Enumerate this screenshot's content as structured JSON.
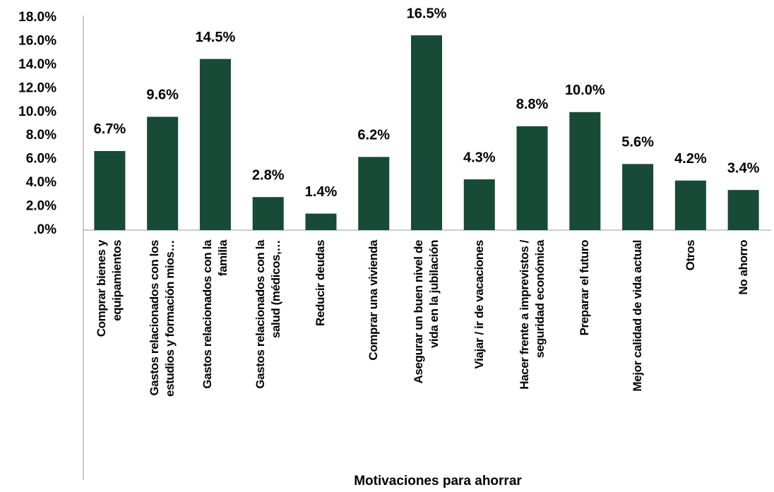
{
  "chart_data": {
    "type": "bar",
    "x_label": "Motivaciones para ahorrar",
    "categories": [
      "Comprar bienes y\nequipamientos",
      "Gastos relacionados con los\nestudios y formación mios…",
      "Gastos relacionados con la\nfamilia",
      "Gastos relacionados con la\nsalud (médicos,…",
      "Reducir deudas",
      "Comprar una vivienda",
      "Asegurar un buen nivel de\nvida en la jubilación",
      "Viajar / ir de vacaciones",
      "Hacer frente a imprevistos /\nseguridad económica",
      "Preparar el futuro",
      "Mejor calidad de vida actual",
      "Otros",
      "No ahorro"
    ],
    "values": [
      6.7,
      9.6,
      14.5,
      2.8,
      1.4,
      6.2,
      16.5,
      4.3,
      8.8,
      10.0,
      5.6,
      4.2,
      3.4
    ],
    "value_labels": [
      "6.7%",
      "9.6%",
      "14.5%",
      "2.8%",
      "1.4%",
      "6.2%",
      "16.5%",
      "4.3%",
      "8.8%",
      "10.0%",
      "5.6%",
      "4.2%",
      "3.4%"
    ],
    "color": "#174a37",
    "ylim": [
      0,
      18
    ],
    "yticks": [
      {
        "value": 0,
        "label": ".0%"
      },
      {
        "value": 2,
        "label": "2.0%"
      },
      {
        "value": 4,
        "label": "4.0%"
      },
      {
        "value": 6,
        "label": "6.0%"
      },
      {
        "value": 8,
        "label": "8.0%"
      },
      {
        "value": 10,
        "label": "10.0%"
      },
      {
        "value": 12,
        "label": "12.0%"
      },
      {
        "value": 14,
        "label": "14.0%"
      },
      {
        "value": 16,
        "label": "16.0%"
      },
      {
        "value": 18,
        "label": "18.0%"
      }
    ],
    "grid": false
  }
}
